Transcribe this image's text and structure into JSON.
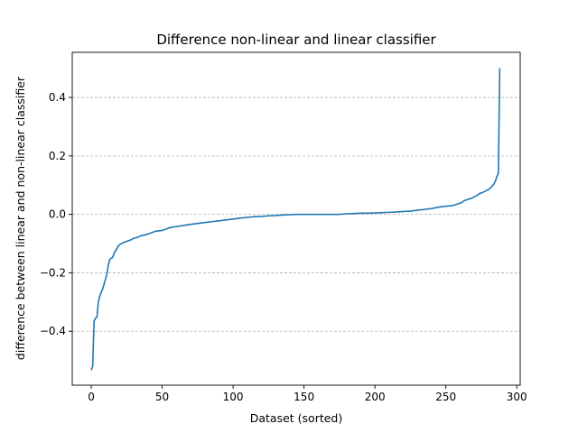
{
  "chart_data": {
    "type": "line",
    "title": "Difference non-linear and linear classifier",
    "xlabel": "Dataset (sorted)",
    "ylabel": "difference between linear and non-linear classifier",
    "xlim": [
      -13.4,
      302.4
    ],
    "ylim": [
      -0.5845,
      0.5545
    ],
    "x_ticks": [
      0,
      50,
      100,
      150,
      200,
      250,
      300
    ],
    "y_ticks": [
      -0.4,
      -0.2,
      0.0,
      0.2,
      0.4
    ],
    "x_tick_labels": [
      "0",
      "50",
      "100",
      "150",
      "200",
      "250",
      "300"
    ],
    "y_tick_labels": [
      "−0.4",
      "−0.2",
      "0.0",
      "0.2",
      "0.4"
    ],
    "grid": "y-dashed",
    "colors": {
      "line": "#1f77b4",
      "grid": "#b0b0b0",
      "axes": "#000000"
    },
    "series": [
      {
        "points": [
          [
            0,
            -0.533
          ],
          [
            1,
            -0.52
          ],
          [
            2,
            -0.365
          ],
          [
            3,
            -0.355
          ],
          [
            4,
            -0.352
          ],
          [
            5,
            -0.3
          ],
          [
            6,
            -0.28
          ],
          [
            7,
            -0.268
          ],
          [
            8,
            -0.255
          ],
          [
            9,
            -0.24
          ],
          [
            10,
            -0.222
          ],
          [
            11,
            -0.205
          ],
          [
            12,
            -0.175
          ],
          [
            13,
            -0.155
          ],
          [
            14,
            -0.15
          ],
          [
            15,
            -0.148
          ],
          [
            16,
            -0.135
          ],
          [
            17,
            -0.125
          ],
          [
            18,
            -0.118
          ],
          [
            19,
            -0.108
          ],
          [
            20,
            -0.104
          ],
          [
            22,
            -0.098
          ],
          [
            25,
            -0.092
          ],
          [
            28,
            -0.087
          ],
          [
            30,
            -0.082
          ],
          [
            33,
            -0.078
          ],
          [
            35,
            -0.073
          ],
          [
            38,
            -0.07
          ],
          [
            40,
            -0.067
          ],
          [
            43,
            -0.062
          ],
          [
            45,
            -0.058
          ],
          [
            50,
            -0.055
          ],
          [
            53,
            -0.05
          ],
          [
            55,
            -0.046
          ],
          [
            58,
            -0.043
          ],
          [
            60,
            -0.042
          ],
          [
            65,
            -0.038
          ],
          [
            70,
            -0.034
          ],
          [
            75,
            -0.031
          ],
          [
            80,
            -0.028
          ],
          [
            85,
            -0.025
          ],
          [
            90,
            -0.022
          ],
          [
            95,
            -0.019
          ],
          [
            100,
            -0.016
          ],
          [
            105,
            -0.013
          ],
          [
            110,
            -0.01
          ],
          [
            115,
            -0.008
          ],
          [
            120,
            -0.007
          ],
          [
            125,
            -0.005
          ],
          [
            130,
            -0.004
          ],
          [
            135,
            -0.002
          ],
          [
            140,
            -0.001
          ],
          [
            145,
            0.0
          ],
          [
            150,
            0.0
          ],
          [
            155,
            0.0
          ],
          [
            160,
            0.0
          ],
          [
            165,
            0.0
          ],
          [
            170,
            0.0
          ],
          [
            175,
            0.0
          ],
          [
            180,
            0.002
          ],
          [
            185,
            0.003
          ],
          [
            190,
            0.004
          ],
          [
            195,
            0.004
          ],
          [
            200,
            0.005
          ],
          [
            205,
            0.006
          ],
          [
            210,
            0.007
          ],
          [
            215,
            0.008
          ],
          [
            220,
            0.01
          ],
          [
            225,
            0.011
          ],
          [
            230,
            0.014
          ],
          [
            235,
            0.017
          ],
          [
            240,
            0.02
          ],
          [
            245,
            0.025
          ],
          [
            250,
            0.028
          ],
          [
            255,
            0.03
          ],
          [
            258,
            0.035
          ],
          [
            261,
            0.04
          ],
          [
            263,
            0.047
          ],
          [
            266,
            0.052
          ],
          [
            268,
            0.055
          ],
          [
            270,
            0.06
          ],
          [
            272,
            0.065
          ],
          [
            274,
            0.072
          ],
          [
            276,
            0.075
          ],
          [
            278,
            0.08
          ],
          [
            280,
            0.085
          ],
          [
            282,
            0.093
          ],
          [
            284,
            0.105
          ],
          [
            285,
            0.115
          ],
          [
            286,
            0.13
          ],
          [
            287,
            0.14
          ],
          [
            288,
            0.5
          ]
        ]
      }
    ]
  }
}
